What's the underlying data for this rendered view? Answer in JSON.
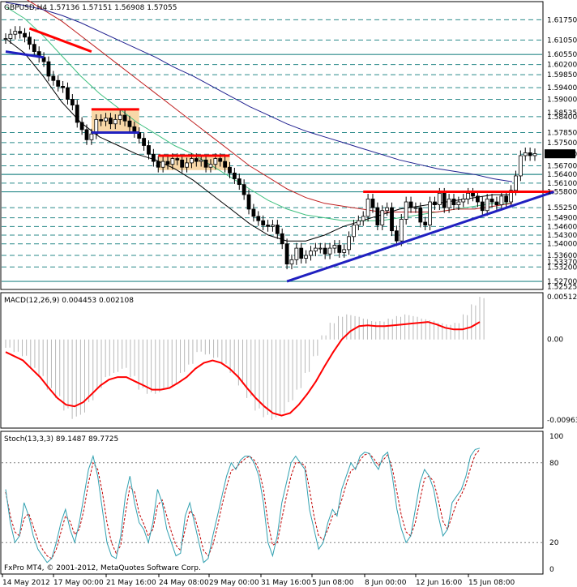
{
  "header": {
    "title": "GBPUSD,H4  1.57136 1.57151 1.56908 1.57055",
    "macd_label": "MACD(12,26,9) 0.004453 0.002108",
    "stoch_label": "Stoch(13,3,3) 89.1487 89.7725",
    "copyright": "FxPro MT4, © 2001-2012, MetaQuotes Software Corp."
  },
  "colors": {
    "candle": "#000000",
    "level_line": "#2a8a8a",
    "trendline": "#2020c0",
    "resistance": "#ff0000",
    "ma_black": "#000000",
    "ma_green": "#40c080",
    "ma_red": "#c02020",
    "ma_blue": "#202090",
    "macd_signal": "#ff0000",
    "stoch_main": "#30a0b0",
    "stoch_signal": "#c00000",
    "zone_fill": "#f8d8a8"
  },
  "chart_data": [
    {
      "type": "candlestick",
      "panel": "price",
      "symbol": "GBPUSD",
      "timeframe": "H4",
      "ohlc_current": [
        1.57136,
        1.57151,
        1.56908,
        1.57055
      ],
      "price_levels": [
        1.6175,
        1.6105,
        1.6055,
        1.602,
        1.5985,
        1.594,
        1.59,
        1.584,
        1.5785,
        1.575,
        1.571,
        1.567,
        1.564,
        1.561,
        1.558,
        1.5525,
        1.549,
        1.546,
        1.543,
        1.54,
        1.536,
        1.532,
        1.527
      ],
      "axis_labels": [
        "1.61750",
        "1.61050",
        "1.60550",
        "1.60200",
        "1.59850",
        "1.59400",
        "1.59000",
        "1.58400",
        "1.58535",
        "1.57850",
        "1.57500",
        "1.57100",
        "1.56700",
        "1.56400",
        "1.56100",
        "1.55800",
        "1.55250",
        "1.54900",
        "1.54600",
        "1.54300",
        "1.54000",
        "1.53600",
        "1.53370",
        "1.53200",
        "1.52700",
        "1.52525"
      ],
      "ylim": [
        1.5245,
        1.6235
      ],
      "x_labels": [
        "14 May 2012",
        "17 May 00:00",
        "21 May 16:00",
        "24 May 08:00",
        "29 May 00:00",
        "31 May 16:00",
        "5 Jun 08:00",
        "8 Jun 00:00",
        "12 Jun 16:00",
        "15 Jun 08:00"
      ],
      "resistance_lines": [
        {
          "from_bar": 5,
          "to_bar": 18,
          "price_start": 1.6145,
          "price_end": 1.6065
        },
        {
          "from_bar": 18,
          "to_bar": 28,
          "price": 1.5865
        },
        {
          "from_bar": 32,
          "to_bar": 47,
          "price": 1.5705
        },
        {
          "from_bar": 75,
          "to_bar": 115,
          "price": 1.558
        }
      ],
      "support_lines": [
        {
          "from_bar": 0,
          "to_bar": 8,
          "price_start": 1.6065,
          "price_end": 1.6045
        },
        {
          "from_bar": 18,
          "to_bar": 28,
          "price": 1.5785
        },
        {
          "from_bar": 59,
          "to_bar": 115,
          "price_start": 1.527,
          "price_end": 1.558
        }
      ],
      "zones": [
        {
          "from_bar": 18,
          "to_bar": 28,
          "price_top": 1.5865,
          "price_bottom": 1.5785
        },
        {
          "from_bar": 32,
          "to_bar": 47,
          "price_top": 1.5705,
          "price_bottom": 1.5655
        }
      ],
      "closes": [
        1.611,
        1.6125,
        1.6135,
        1.6128,
        1.6115,
        1.609,
        1.6065,
        1.6045,
        1.603,
        1.598,
        1.5965,
        1.5945,
        1.594,
        1.59,
        1.588,
        1.582,
        1.5795,
        1.576,
        1.578,
        1.583,
        1.5825,
        1.5835,
        1.5815,
        1.583,
        1.5845,
        1.5825,
        1.5805,
        1.5785,
        1.5765,
        1.574,
        1.571,
        1.5685,
        1.5665,
        1.5685,
        1.5675,
        1.5695,
        1.569,
        1.5665,
        1.568,
        1.5695,
        1.5685,
        1.569,
        1.5665,
        1.5675,
        1.5695,
        1.5685,
        1.5665,
        1.5645,
        1.5625,
        1.5605,
        1.557,
        1.552,
        1.5495,
        1.548,
        1.5465,
        1.546,
        1.5465,
        1.5435,
        1.54,
        1.533,
        1.5345,
        1.5385,
        1.535,
        1.536,
        1.5375,
        1.5385,
        1.5385,
        1.5365,
        1.5385,
        1.5395,
        1.537,
        1.538,
        1.5425,
        1.5465,
        1.548,
        1.5495,
        1.5555,
        1.5525,
        1.5465,
        1.5515,
        1.5525,
        1.5445,
        1.541,
        1.5485,
        1.5545,
        1.5525,
        1.5525,
        1.5475,
        1.5465,
        1.5545,
        1.5535,
        1.5575,
        1.5525,
        1.5555,
        1.5535,
        1.5545,
        1.5555,
        1.5575,
        1.5565,
        1.5545,
        1.5515,
        1.5555,
        1.5545,
        1.5535,
        1.5565,
        1.5545,
        1.5585,
        1.5635,
        1.5705,
        1.5715,
        1.5705,
        1.5712
      ],
      "moving_averages": [
        {
          "color_key": "ma_black",
          "values": [
            1.611,
            1.606,
            1.598,
            1.589,
            1.582,
            1.577,
            1.574,
            1.571,
            1.569,
            1.566,
            1.562,
            1.557,
            1.552,
            1.547,
            1.543,
            1.541,
            1.541,
            1.543,
            1.546,
            1.548,
            1.55,
            1.552,
            1.553,
            1.554,
            1.555,
            1.556,
            1.557,
            1.557
          ]
        },
        {
          "color_key": "ma_green",
          "values": [
            1.622,
            1.618,
            1.612,
            1.605,
            1.598,
            1.592,
            1.587,
            1.582,
            1.578,
            1.574,
            1.571,
            1.567,
            1.563,
            1.559,
            1.555,
            1.552,
            1.55,
            1.549,
            1.548,
            1.548,
            1.548,
            1.549,
            1.55,
            1.551,
            1.552,
            1.553,
            1.554,
            1.554
          ]
        },
        {
          "color_key": "ma_red",
          "values": [
            1.627,
            1.625,
            1.621,
            1.617,
            1.612,
            1.607,
            1.602,
            1.597,
            1.592,
            1.587,
            1.582,
            1.577,
            1.572,
            1.567,
            1.563,
            1.559,
            1.556,
            1.554,
            1.553,
            1.552,
            1.551,
            1.551,
            1.551,
            1.551,
            1.552,
            1.552,
            1.553,
            1.554
          ]
        },
        {
          "color_key": "ma_blue",
          "values": [
            1.6235,
            1.6225,
            1.621,
            1.619,
            1.6165,
            1.6135,
            1.6105,
            1.6075,
            1.6045,
            1.601,
            1.598,
            1.5945,
            1.591,
            1.5875,
            1.5845,
            1.5815,
            1.579,
            1.577,
            1.575,
            1.573,
            1.571,
            1.569,
            1.5675,
            1.566,
            1.565,
            1.564,
            1.5625,
            1.5615
          ]
        }
      ]
    },
    {
      "type": "bar+line",
      "panel": "macd",
      "name": "MACD(12,26,9)",
      "values_current": [
        0.004453,
        0.002108
      ],
      "axis_labels": [
        "0.00512",
        "0.00",
        "-0.00963"
      ],
      "ylim": [
        -0.0105,
        0.0055
      ],
      "histogram": [
        -0.001,
        -0.0015,
        -0.002,
        -0.0035,
        -0.0045,
        -0.006,
        -0.007,
        -0.0085,
        -0.0095,
        -0.009,
        -0.0075,
        -0.006,
        -0.0045,
        -0.004,
        -0.0035,
        -0.0045,
        -0.006,
        -0.0065,
        -0.0065,
        -0.006,
        -0.0055,
        -0.004,
        -0.003,
        -0.0015,
        -0.0018,
        -0.0022,
        -0.003,
        -0.004,
        -0.0055,
        -0.007,
        -0.0085,
        -0.0093,
        -0.0096,
        -0.009,
        -0.0075,
        -0.006,
        -0.004,
        -0.002,
        0.0005,
        0.002,
        0.0028,
        0.003,
        0.0028,
        0.0025,
        0.0022,
        0.0022,
        0.0025,
        0.0028,
        0.003,
        0.0028,
        0.0025,
        0.0023,
        0.002,
        0.0018,
        0.002,
        0.003,
        0.0042,
        0.0051
      ],
      "signal": [
        -0.0015,
        -0.002,
        -0.0025,
        -0.0035,
        -0.0045,
        -0.0058,
        -0.007,
        -0.0078,
        -0.008,
        -0.0075,
        -0.0065,
        -0.0055,
        -0.0048,
        -0.0045,
        -0.0045,
        -0.005,
        -0.0055,
        -0.006,
        -0.006,
        -0.0058,
        -0.0052,
        -0.0045,
        -0.0035,
        -0.0028,
        -0.0025,
        -0.0028,
        -0.0035,
        -0.0045,
        -0.0058,
        -0.007,
        -0.008,
        -0.0088,
        -0.0091,
        -0.0088,
        -0.0078,
        -0.0065,
        -0.005,
        -0.0032,
        -0.0015,
        0.0,
        0.001,
        0.0016,
        0.0017,
        0.0016,
        0.0016,
        0.0017,
        0.0018,
        0.0019,
        0.002,
        0.0021,
        0.0018,
        0.0014,
        0.0012,
        0.0012,
        0.0015,
        0.0021
      ]
    },
    {
      "type": "line",
      "panel": "stochastic",
      "name": "Stoch(13,3,3)",
      "values_current": [
        89.1487,
        89.7725
      ],
      "axis_labels": [
        "100",
        "80",
        "20",
        "0"
      ],
      "ylim": [
        0,
        100
      ],
      "main": [
        60,
        35,
        20,
        25,
        50,
        40,
        25,
        15,
        10,
        5,
        8,
        20,
        35,
        45,
        30,
        20,
        35,
        55,
        75,
        85,
        70,
        45,
        20,
        10,
        8,
        25,
        55,
        70,
        50,
        35,
        30,
        20,
        35,
        60,
        50,
        30,
        20,
        10,
        12,
        40,
        50,
        35,
        20,
        5,
        8,
        25,
        40,
        55,
        70,
        80,
        75,
        82,
        85,
        85,
        80,
        70,
        50,
        20,
        10,
        25,
        50,
        65,
        80,
        85,
        80,
        75,
        45,
        30,
        15,
        20,
        35,
        45,
        40,
        60,
        70,
        80,
        75,
        85,
        88,
        87,
        80,
        75,
        85,
        88,
        70,
        45,
        30,
        20,
        25,
        45,
        65,
        75,
        70,
        60,
        40,
        25,
        30,
        50,
        55,
        60,
        70,
        85,
        90,
        91
      ],
      "signal": [
        58,
        40,
        28,
        25,
        38,
        42,
        32,
        22,
        15,
        10,
        8,
        15,
        28,
        40,
        36,
        26,
        30,
        45,
        65,
        80,
        75,
        58,
        35,
        20,
        12,
        18,
        42,
        62,
        58,
        42,
        34,
        25,
        30,
        48,
        52,
        40,
        28,
        18,
        14,
        30,
        44,
        40,
        28,
        14,
        10,
        18,
        32,
        48,
        62,
        74,
        76,
        80,
        83,
        85,
        82,
        75,
        60,
        35,
        18,
        20,
        38,
        55,
        70,
        80,
        80,
        78,
        60,
        40,
        25,
        22,
        30,
        40,
        42,
        52,
        64,
        74,
        76,
        82,
        86,
        87,
        83,
        78,
        82,
        86,
        76,
        58,
        40,
        28,
        25,
        35,
        52,
        68,
        70,
        66,
        52,
        36,
        30,
        40,
        50,
        56,
        64,
        76,
        86,
        90
      ]
    }
  ]
}
